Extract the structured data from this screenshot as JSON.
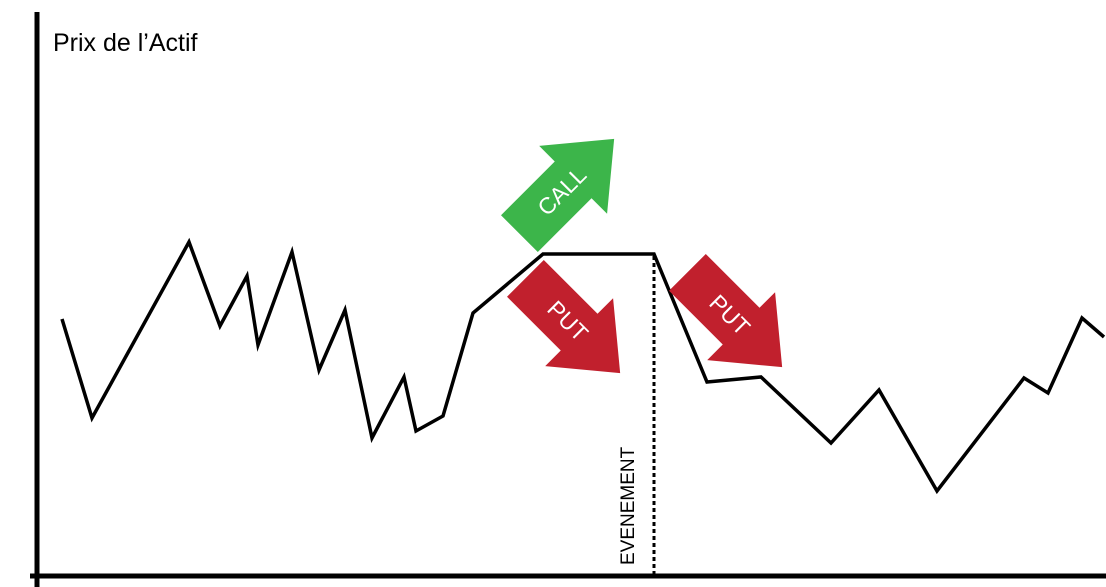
{
  "diagram": {
    "y_axis_title": "Prix de l’Actif",
    "event_label": "EVENEMENT",
    "call_label": "CALL",
    "put_label": "PUT"
  },
  "colors": {
    "axis": "#000000",
    "price_line": "#000000",
    "call_arrow": "#3cb54a",
    "put_arrow": "#c1202d",
    "arrow_text": "#ffffff",
    "background": "#ffffff"
  },
  "icons": {
    "call_arrow": "arrow-up-right-icon",
    "put_arrow": "arrow-down-right-icon"
  }
}
